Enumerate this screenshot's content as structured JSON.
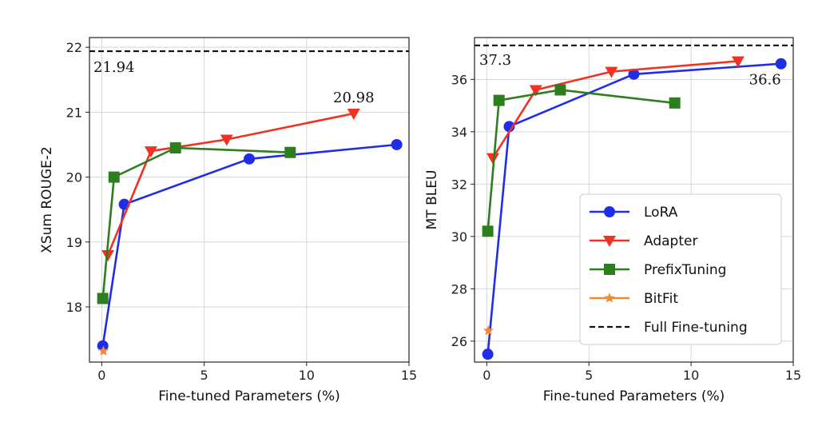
{
  "chart_data": [
    {
      "type": "line",
      "xlabel": "Fine-tuned Parameters (%)",
      "ylabel": "XSum ROUGE-2",
      "xlim": [
        -0.6,
        15
      ],
      "ylim": [
        17.15,
        22.15
      ],
      "xticks": [
        0,
        5,
        10,
        15
      ],
      "yticks": [
        18,
        19,
        20,
        21,
        22
      ],
      "grid": true,
      "reference_line": {
        "label": "Full Fine-tuning",
        "value": 21.94,
        "annotation": "21.94"
      },
      "annotations": [
        {
          "text": "20.98",
          "x": 12.3,
          "y": 20.98
        }
      ],
      "series": [
        {
          "name": "LoRA",
          "color": "#1f2ee6",
          "marker": "circle",
          "x": [
            0.05,
            1.1,
            7.2,
            14.4
          ],
          "y": [
            17.4,
            19.58,
            20.28,
            20.5
          ]
        },
        {
          "name": "Adapter",
          "color": "#ee3322",
          "marker": "triangle-down",
          "x": [
            0.3,
            2.4,
            6.1,
            12.3
          ],
          "y": [
            18.8,
            20.4,
            20.58,
            20.98
          ]
        },
        {
          "name": "PrefixTuning",
          "color": "#2e7d1f",
          "marker": "square",
          "x": [
            0.05,
            0.6,
            3.6,
            9.2
          ],
          "y": [
            18.13,
            20.0,
            20.45,
            20.38
          ]
        },
        {
          "name": "BitFit",
          "color": "#f08a30",
          "marker": "star",
          "x": [
            0.08
          ],
          "y": [
            17.32
          ]
        }
      ]
    },
    {
      "type": "line",
      "xlabel": "Fine-tuned Parameters (%)",
      "ylabel": "MT BLEU",
      "xlim": [
        -0.6,
        15
      ],
      "ylim": [
        25.2,
        37.6
      ],
      "xticks": [
        0,
        5,
        10,
        15
      ],
      "yticks": [
        26,
        28,
        30,
        32,
        34,
        36
      ],
      "grid": true,
      "reference_line": {
        "label": "Full Fine-tuning",
        "value": 37.3,
        "annotation": "37.3"
      },
      "annotations": [
        {
          "text": "36.6",
          "x": 14.4,
          "y": 36.6
        }
      ],
      "legend": {
        "position": "lower-right",
        "entries": [
          "LoRA",
          "Adapter",
          "PrefixTuning",
          "BitFit",
          "Full Fine-tuning"
        ]
      },
      "series": [
        {
          "name": "LoRA",
          "color": "#1f2ee6",
          "marker": "circle",
          "x": [
            0.05,
            1.1,
            7.2,
            14.4
          ],
          "y": [
            25.5,
            34.2,
            36.2,
            36.6
          ]
        },
        {
          "name": "Adapter",
          "color": "#ee3322",
          "marker": "triangle-down",
          "x": [
            0.3,
            2.4,
            6.1,
            12.3
          ],
          "y": [
            33.0,
            35.6,
            36.3,
            36.7
          ]
        },
        {
          "name": "PrefixTuning",
          "color": "#2e7d1f",
          "marker": "square",
          "x": [
            0.05,
            0.6,
            3.6,
            9.2
          ],
          "y": [
            30.2,
            35.2,
            35.6,
            35.1
          ]
        },
        {
          "name": "BitFit",
          "color": "#f08a30",
          "marker": "star",
          "x": [
            0.08
          ],
          "y": [
            26.4
          ]
        }
      ]
    }
  ]
}
